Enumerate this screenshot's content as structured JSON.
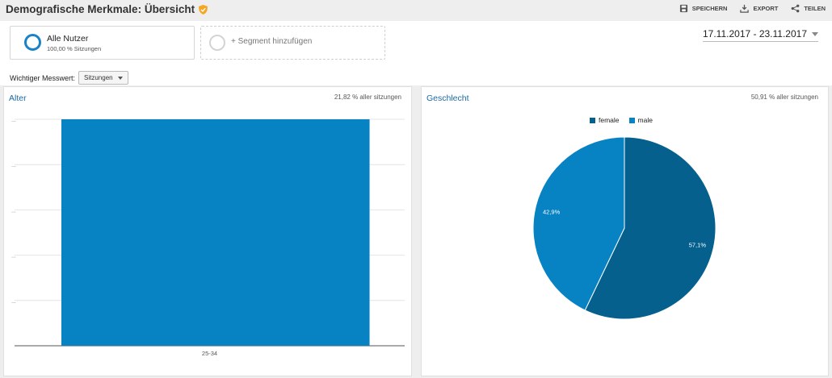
{
  "header": {
    "title": "Demografische Merkmale: Übersicht",
    "actions": {
      "save": "SPEICHERN",
      "export": "EXPORT",
      "share": "TEILEN"
    }
  },
  "segments": {
    "active": {
      "name": "Alle Nutzer",
      "sub": "100,00 % Sitzungen"
    },
    "add_label": "+ Segment hinzufügen"
  },
  "date_range": "17.11.2017 - 23.11.2017",
  "metric": {
    "label": "Wichtiger Messwert:",
    "value": "Sitzungen"
  },
  "age_panel": {
    "title": "Alter",
    "meta": "21,82 % aller sitzungen"
  },
  "gender_panel": {
    "title": "Geschlecht",
    "meta": "50,91 % aller sitzungen"
  },
  "colors": {
    "accent": "#1a6aa6",
    "bar": "#0782c2",
    "female": "#06608e",
    "male": "#0782c2"
  },
  "chart_data": [
    {
      "type": "bar",
      "categories": [
        "25-34"
      ],
      "values": [
        100
      ],
      "title": "Alter",
      "xlabel": "",
      "ylabel": "",
      "yticks": [
        "...",
        "...",
        "...",
        "...",
        "..."
      ],
      "ylim": [
        0,
        100
      ],
      "grid": true
    },
    {
      "type": "pie",
      "title": "Geschlecht",
      "categories": [
        "female",
        "male"
      ],
      "values": [
        57.1,
        42.9
      ],
      "labels": [
        "57,1%",
        "42,9%"
      ],
      "legend": "top"
    }
  ]
}
